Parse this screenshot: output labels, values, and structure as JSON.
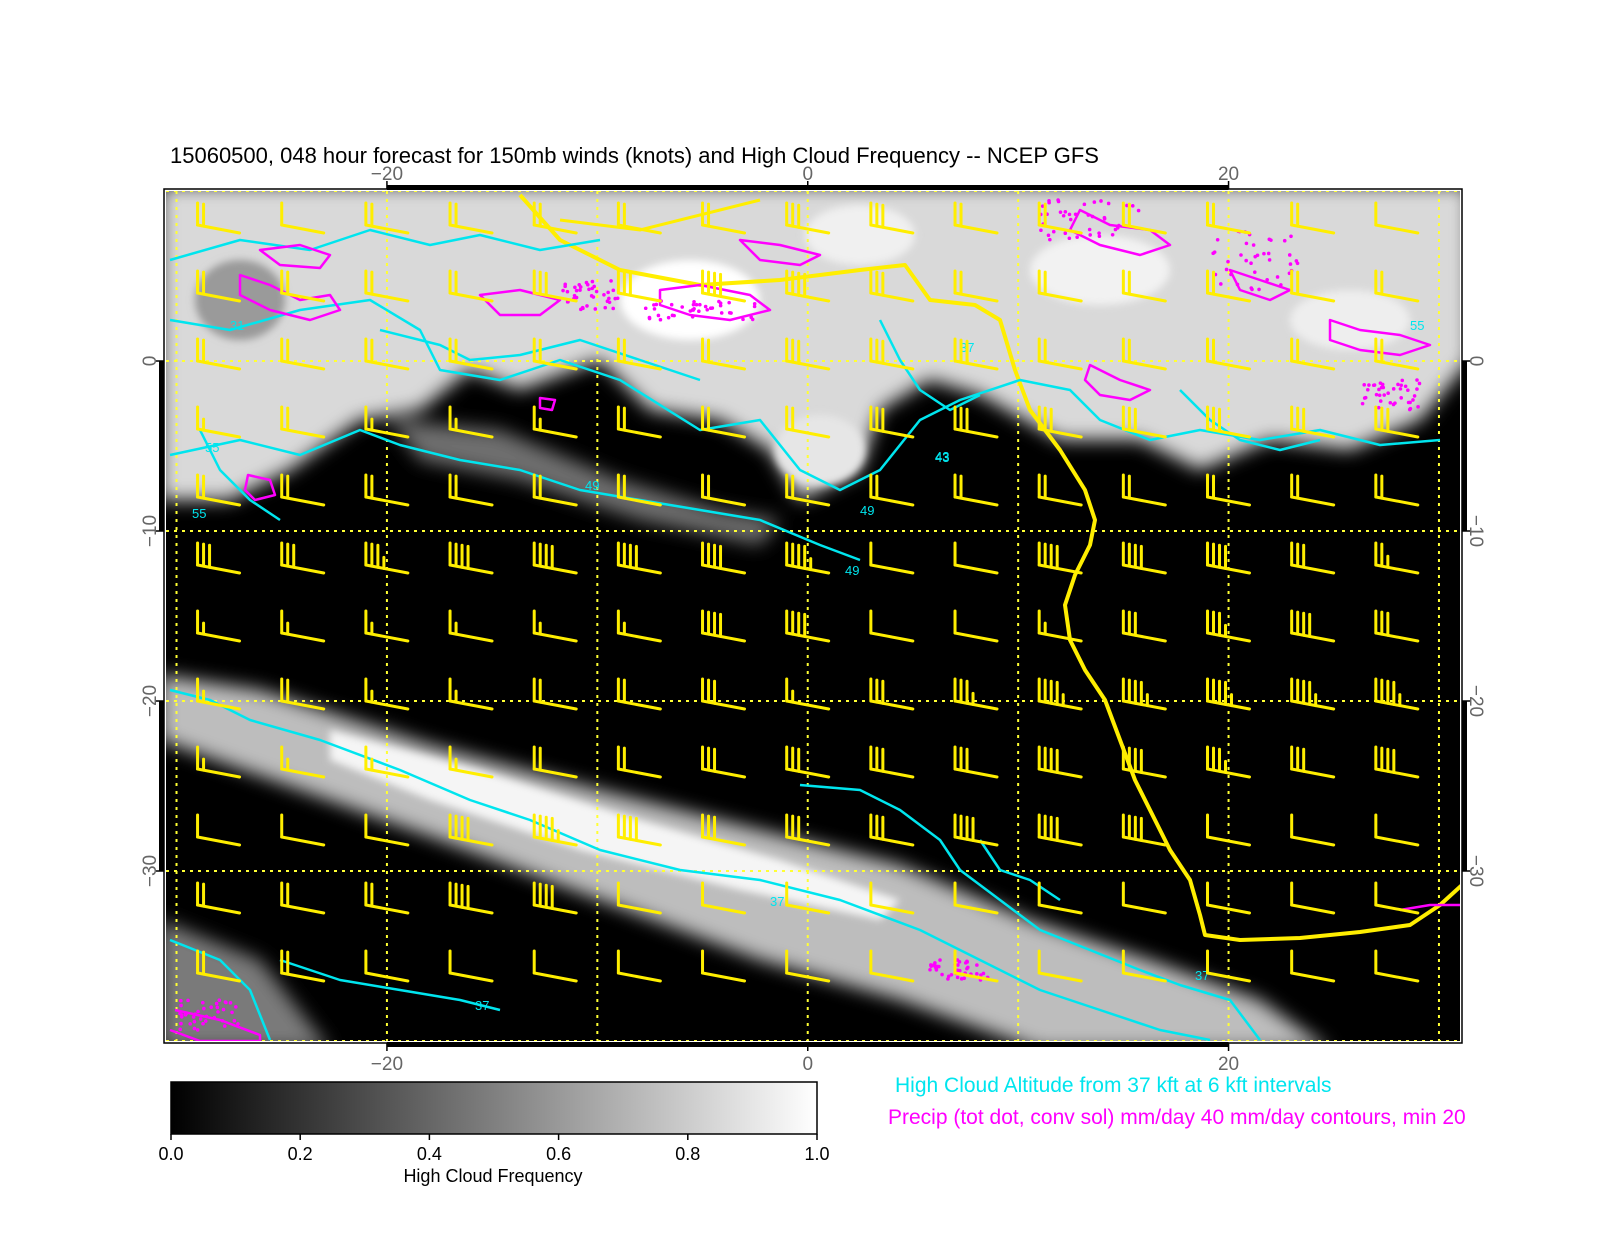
{
  "title": "15060500, 048 hour forecast for 150mb winds (knots) and High Cloud Frequency -- NCEP GFS",
  "map": {
    "lon_range": [
      -30.5,
      31
    ],
    "lat_range": [
      -40,
      10
    ],
    "lon_ticks": [
      -20,
      0,
      20
    ],
    "lon_tick_labels": [
      "−20",
      "0",
      "20"
    ],
    "lat_ticks": [
      0,
      -10,
      -20,
      -30
    ],
    "lat_tick_labels": [
      "0",
      "−10",
      "−20",
      "−30"
    ],
    "grid": true,
    "grid_color": "#ffff33",
    "coast_color": "#ffee00",
    "background_color": "#000000"
  },
  "colorbar": {
    "label": "High Cloud Frequency",
    "ticks": [
      0.0,
      0.2,
      0.4,
      0.6,
      0.8,
      1.0
    ],
    "tick_labels": [
      "0.0",
      "0.2",
      "0.4",
      "0.6",
      "0.8",
      "1.0"
    ],
    "range": [
      0.0,
      1.0
    ],
    "color_low": "#000000",
    "color_high": "#ffffff"
  },
  "legend": {
    "cloud_altitude": "High Cloud Altitude from 37 kft at 6 kft intervals",
    "precip": "Precip (tot dot, conv sol) mm/day 40 mm/day contours, min 20",
    "cloud_color": "#00e5ee",
    "precip_color": "#ff00ff"
  },
  "chart_data": {
    "type": "heatmap",
    "variable": "High Cloud Frequency",
    "overlays": [
      "150mb wind barbs (knots)",
      "High cloud altitude contours (kft)",
      "Precip contours (mm/day)"
    ],
    "cloud_bands": [
      {
        "lon_range": [
          -30,
          31
        ],
        "lat_range": [
          0,
          10
        ],
        "frequency": 0.85
      },
      {
        "lon_from": [
          -30,
          -20
        ],
        "lon_to": [
          22,
          -40
        ],
        "frequency": 0.8
      },
      {
        "lon_from": [
          -22,
          -7
        ],
        "lon_to": [
          -6,
          -11
        ],
        "frequency": 0.35
      }
    ],
    "contour_labels": [
      "49",
      "49",
      "49",
      "55",
      "55",
      "37",
      "37",
      "37",
      "37",
      "43",
      "43",
      "55",
      "31"
    ],
    "wind_barb_grid": {
      "lons": [
        -29,
        -25,
        -21,
        -17,
        -13,
        -9,
        -5,
        -1,
        3,
        7,
        11,
        15,
        19,
        23,
        27
      ],
      "lats": [
        8,
        4,
        0,
        -4,
        -8,
        -12,
        -16,
        -20,
        -24,
        -28,
        -32,
        -36
      ],
      "speed_knots_by_row": [
        [
          20,
          10,
          20,
          20,
          20,
          20,
          20,
          30,
          30,
          20,
          20,
          20,
          20,
          20,
          10
        ],
        [
          20,
          20,
          20,
          20,
          30,
          30,
          40,
          40,
          30,
          20,
          20,
          20,
          20,
          20,
          20
        ],
        [
          20,
          20,
          20,
          20,
          20,
          20,
          20,
          30,
          30,
          30,
          20,
          20,
          20,
          20,
          20
        ],
        [
          15,
          20,
          15,
          15,
          15,
          20,
          20,
          20,
          30,
          30,
          30,
          30,
          30,
          30,
          30
        ],
        [
          20,
          20,
          20,
          20,
          20,
          20,
          20,
          20,
          20,
          20,
          20,
          20,
          20,
          20,
          20
        ],
        [
          30,
          30,
          35,
          40,
          40,
          40,
          40,
          45,
          10,
          10,
          40,
          40,
          40,
          30,
          25
        ],
        [
          15,
          15,
          15,
          15,
          15,
          15,
          40,
          40,
          10,
          10,
          15,
          30,
          35,
          40,
          30
        ],
        [
          15,
          20,
          15,
          15,
          20,
          20,
          30,
          15,
          30,
          35,
          45,
          45,
          45,
          45,
          45
        ],
        [
          15,
          15,
          15,
          15,
          20,
          20,
          30,
          30,
          30,
          30,
          40,
          40,
          35,
          30,
          40
        ],
        [
          10,
          10,
          10,
          40,
          45,
          40,
          30,
          30,
          30,
          40,
          40,
          40,
          10,
          10,
          10
        ],
        [
          20,
          20,
          20,
          40,
          40,
          10,
          10,
          10,
          10,
          10,
          10,
          10,
          10,
          10,
          10
        ],
        [
          20,
          20,
          10,
          10,
          10,
          10,
          10,
          10,
          10,
          10,
          10,
          10,
          10,
          10,
          10
        ]
      ]
    }
  }
}
